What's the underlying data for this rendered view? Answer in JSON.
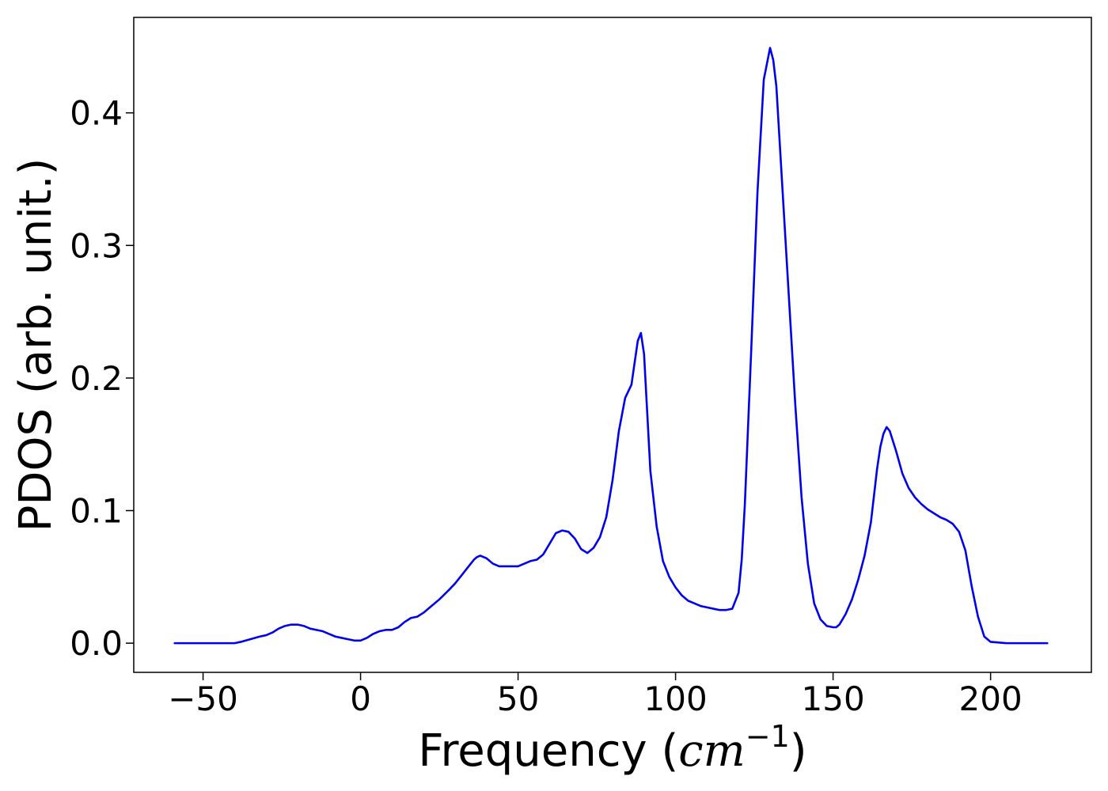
{
  "chart_data": {
    "type": "line",
    "title": "",
    "xlabel": "Frequency (cm⁻¹)",
    "xlabel_prefix": "Frequency (",
    "xlabel_math": "cm",
    "xlabel_sup": "−1",
    "xlabel_suffix": ")",
    "ylabel": "PDOS (arb. unit.)",
    "xlim": [
      -72,
      232
    ],
    "ylim": [
      -0.022,
      0.472
    ],
    "x_ticks": [
      -50,
      0,
      50,
      100,
      150,
      200
    ],
    "x_tick_labels": [
      "−50",
      "0",
      "50",
      "100",
      "150",
      "200"
    ],
    "y_ticks": [
      0.0,
      0.1,
      0.2,
      0.3,
      0.4
    ],
    "y_tick_labels": [
      "0.0",
      "0.1",
      "0.2",
      "0.3",
      "0.4"
    ],
    "grid": false,
    "legend": "none",
    "series": [
      {
        "color": "#0000ee",
        "x": [
          -59,
          -50,
          -45,
          -40,
          -38,
          -35,
          -32,
          -30,
          -28,
          -26,
          -24,
          -22,
          -20,
          -18,
          -16,
          -14,
          -12,
          -10,
          -8,
          -6,
          -4,
          -2,
          0,
          2,
          4,
          6,
          8,
          10,
          12,
          14,
          16,
          18,
          20,
          22,
          25,
          28,
          30,
          32,
          34,
          35,
          36,
          37,
          38,
          40,
          42,
          44,
          46,
          48,
          50,
          52,
          54,
          56,
          58,
          60,
          62,
          64,
          66,
          68,
          70,
          72,
          74,
          76,
          78,
          80,
          82,
          84,
          86,
          88,
          89,
          90,
          92,
          94,
          96,
          98,
          100,
          102,
          104,
          106,
          108,
          110,
          112,
          114,
          116,
          118,
          120,
          121,
          122,
          124,
          126,
          128,
          130,
          131,
          132,
          134,
          136,
          138,
          140,
          142,
          144,
          146,
          148,
          150,
          151,
          152,
          154,
          156,
          158,
          160,
          162,
          164,
          165,
          166,
          167,
          168,
          170,
          172,
          174,
          176,
          178,
          180,
          182,
          184,
          186,
          188,
          190,
          192,
          194,
          196,
          198,
          200,
          205,
          210,
          218
        ],
        "y": [
          0.0,
          0.0,
          0.0,
          0.0,
          0.001,
          0.003,
          0.005,
          0.006,
          0.008,
          0.011,
          0.013,
          0.014,
          0.014,
          0.013,
          0.011,
          0.01,
          0.009,
          0.007,
          0.005,
          0.004,
          0.003,
          0.002,
          0.002,
          0.004,
          0.007,
          0.009,
          0.01,
          0.01,
          0.012,
          0.016,
          0.019,
          0.02,
          0.023,
          0.027,
          0.033,
          0.04,
          0.045,
          0.051,
          0.057,
          0.06,
          0.063,
          0.065,
          0.066,
          0.064,
          0.06,
          0.058,
          0.058,
          0.058,
          0.058,
          0.06,
          0.062,
          0.063,
          0.067,
          0.075,
          0.083,
          0.085,
          0.084,
          0.079,
          0.071,
          0.068,
          0.072,
          0.08,
          0.095,
          0.123,
          0.16,
          0.185,
          0.195,
          0.228,
          0.234,
          0.218,
          0.13,
          0.088,
          0.062,
          0.05,
          0.042,
          0.036,
          0.032,
          0.03,
          0.028,
          0.027,
          0.026,
          0.025,
          0.025,
          0.026,
          0.038,
          0.063,
          0.105,
          0.22,
          0.34,
          0.425,
          0.449,
          0.44,
          0.42,
          0.34,
          0.26,
          0.18,
          0.11,
          0.06,
          0.03,
          0.018,
          0.013,
          0.012,
          0.012,
          0.014,
          0.022,
          0.033,
          0.048,
          0.066,
          0.091,
          0.132,
          0.148,
          0.158,
          0.163,
          0.16,
          0.145,
          0.128,
          0.117,
          0.11,
          0.105,
          0.101,
          0.098,
          0.095,
          0.093,
          0.09,
          0.084,
          0.07,
          0.043,
          0.02,
          0.005,
          0.001,
          0.0,
          0.0,
          0.0
        ]
      }
    ]
  }
}
